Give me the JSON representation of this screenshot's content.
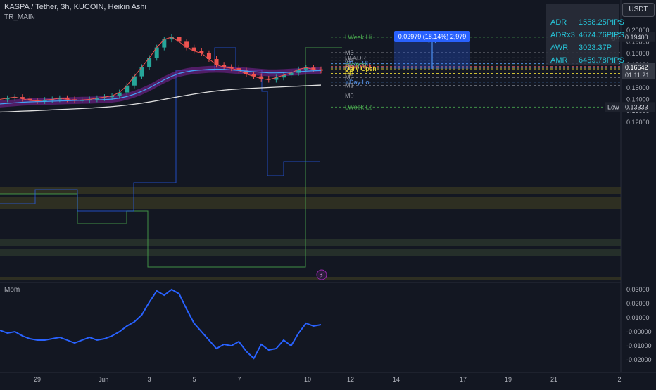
{
  "header": {
    "title": "KASPA / Tether, 3h, KUCOIN, Heikin Ashi",
    "indicator": "TR_MAIN",
    "currency": "USDT"
  },
  "stats_panel": [
    {
      "key": "ADR",
      "value": "1558.25PIPS"
    },
    {
      "key": "ADRx3",
      "value": "4674.76PIPS"
    },
    {
      "key": "AWR",
      "value": "3023.37P"
    },
    {
      "key": "AMR",
      "value": "6459.78PIPS"
    }
  ],
  "price_axis": {
    "ticks": [
      "0.20000",
      "0.19000",
      "0.18000",
      "0.17000",
      "0.16000",
      "0.15000",
      "0.14000",
      "0.13000",
      "0.12000"
    ],
    "tick_values": [
      0.2,
      0.19,
      0.18,
      0.17,
      0.16,
      0.15,
      0.14,
      0.13,
      0.12
    ],
    "high_label": "High",
    "high_value": "0.19400",
    "last_price": "0.16642",
    "countdown": "01:11:21",
    "low_label": "Low",
    "low_value": "0.13333"
  },
  "mom_axis": {
    "label": "Mom",
    "ticks": [
      "0.03000",
      "0.02000",
      "0.01000",
      "-0.00000",
      "-0.01000",
      "-0.02000"
    ],
    "tick_values": [
      0.03,
      0.02,
      0.01,
      0.0,
      -0.01,
      -0.02
    ]
  },
  "time_axis": [
    "29",
    "Jun",
    "3",
    "5",
    "7",
    "10",
    "12",
    "14",
    "17",
    "19",
    "21",
    "2"
  ],
  "measure_box": {
    "label": "0.02979 (18.14%) 2,979"
  },
  "levels": [
    {
      "label": "LWeek Hi",
      "value": 0.194,
      "color": "#4caf50"
    },
    {
      "label": "M5",
      "value": 0.1805,
      "color": "#9598a1"
    },
    {
      "label": "HI ADR",
      "value": 0.176,
      "color": "#9598a1"
    },
    {
      "label": "M4",
      "value": 0.174,
      "color": "#9598a1"
    },
    {
      "label": "YDay Hi",
      "value": 0.171,
      "color": "#5b9cf6"
    },
    {
      "label": "Sydney",
      "value": 0.17,
      "color": "#4caf50"
    },
    {
      "label": "New York",
      "value": 0.1685,
      "color": "#ef5350"
    },
    {
      "label": "M3",
      "value": 0.1675,
      "color": "#9598a1"
    },
    {
      "label": "Daily Open",
      "value": 0.1665,
      "color": "#ffeb3b"
    },
    {
      "label": "PP",
      "value": 0.1625,
      "color": "#ffeb3b"
    },
    {
      "label": "M2",
      "value": 0.159,
      "color": "#9598a1"
    },
    {
      "label": "YDay Lo",
      "value": 0.155,
      "color": "#5b9cf6"
    },
    {
      "label": "M1",
      "value": 0.152,
      "color": "#9598a1"
    },
    {
      "label": "M0",
      "value": 0.143,
      "color": "#9598a1"
    },
    {
      "label": "LWeek Lo",
      "value": 0.1333,
      "color": "#4caf50"
    }
  ],
  "chart_data": {
    "type": "line",
    "ylim": [
      0.1155,
      0.2045
    ],
    "series": [
      {
        "values": [
          0.14,
          0.141,
          0.142,
          0.1405,
          0.139,
          0.1385,
          0.1395,
          0.14,
          0.141,
          0.14,
          0.139,
          0.1395,
          0.14,
          0.141,
          0.142,
          0.143,
          0.146,
          0.152,
          0.16,
          0.168,
          0.176,
          0.185,
          0.192,
          0.194,
          0.19,
          0.185,
          0.182,
          0.18,
          0.175,
          0.17,
          0.168,
          0.167,
          0.165,
          0.162,
          0.16,
          0.158,
          0.157,
          0.159,
          0.161,
          0.163,
          0.166,
          0.1675,
          0.166,
          0.165
        ]
      },
      {
        "values": [
          0.136,
          0.1365,
          0.137,
          0.1375,
          0.1378,
          0.138,
          0.1382,
          0.1384,
          0.1386,
          0.1388,
          0.139,
          0.1392,
          0.1393,
          0.1395,
          0.1398,
          0.1402,
          0.141,
          0.1425,
          0.1445,
          0.147,
          0.15,
          0.1535,
          0.157,
          0.16,
          0.1625,
          0.164,
          0.165,
          0.1655,
          0.166,
          0.1662,
          0.166,
          0.1655,
          0.165,
          0.1645,
          0.164,
          0.1635,
          0.163,
          0.163,
          0.1632,
          0.1636,
          0.164,
          0.1645,
          0.1648,
          0.165
        ]
      },
      {
        "values": [
          0.129,
          0.1292,
          0.1295,
          0.1298,
          0.13,
          0.1303,
          0.1306,
          0.1309,
          0.1312,
          0.1315,
          0.1318,
          0.1321,
          0.1324,
          0.1328,
          0.1332,
          0.1337,
          0.1343,
          0.135,
          0.1358,
          0.1367,
          0.1377,
          0.1388,
          0.14,
          0.1412,
          0.1424,
          0.1435,
          0.1446,
          0.1456,
          0.1465,
          0.1473,
          0.148,
          0.1486,
          0.149,
          0.1494,
          0.1497,
          0.15,
          0.1503,
          0.1506,
          0.1509,
          0.1512,
          0.1515,
          0.1518,
          0.1521,
          0.1524
        ]
      },
      {
        "values": [
          0.001,
          -0.001,
          0.0,
          -0.003,
          -0.005,
          -0.006,
          -0.006,
          -0.005,
          -0.004,
          -0.006,
          -0.008,
          -0.006,
          -0.004,
          -0.006,
          -0.005,
          -0.003,
          0.0,
          0.004,
          0.007,
          0.012,
          0.021,
          0.029,
          0.026,
          0.03,
          0.027,
          0.016,
          0.006,
          0.0,
          -0.006,
          -0.012,
          -0.009,
          -0.01,
          -0.007,
          -0.014,
          -0.019,
          -0.009,
          -0.013,
          -0.012,
          -0.006,
          -0.01,
          -0.001,
          0.006,
          0.004,
          0.005
        ]
      }
    ]
  },
  "colors": {
    "background": "#131722",
    "price_line": "#4a8ef0",
    "ma_fast": "#ef5350",
    "ma_slow": "#42a5f5",
    "ma_long": "#e0e0e0",
    "cloud": "#8e24aa",
    "momentum": "#2962ff",
    "bull": "#26a69a",
    "bear": "#ef5350"
  }
}
